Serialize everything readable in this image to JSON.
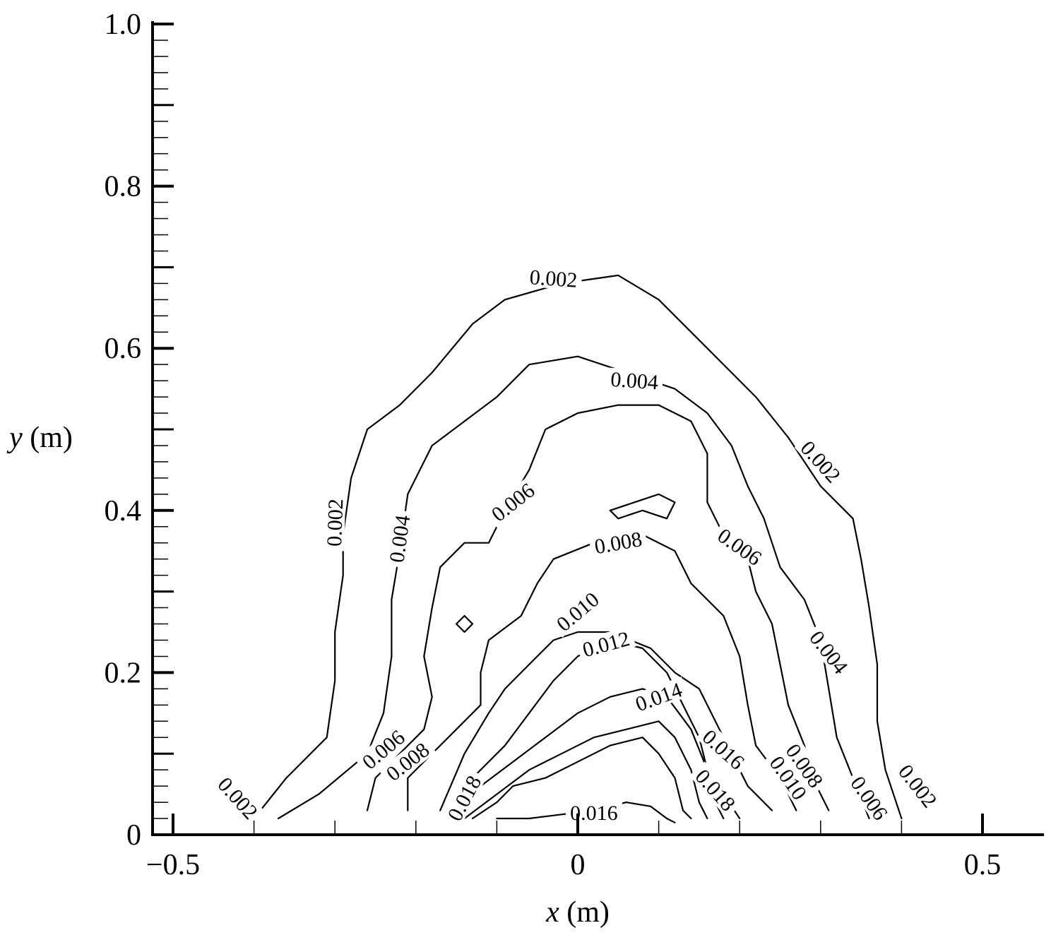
{
  "chart_data": {
    "type": "contour",
    "xlabel_var": "x",
    "xlabel_unit": "(m)",
    "ylabel_var": "y",
    "ylabel_unit": "(m)",
    "xlim": [
      -0.55,
      0.58
    ],
    "ylim": [
      0,
      1.0
    ],
    "x_ticks": [
      {
        "value": -0.5,
        "label": "−0.5"
      },
      {
        "value": 0,
        "label": "0"
      },
      {
        "value": 0.5,
        "label": "0.5"
      }
    ],
    "y_ticks": [
      {
        "value": 0,
        "label": "0"
      },
      {
        "value": 0.2,
        "label": "0.2"
      },
      {
        "value": 0.4,
        "label": "0.4"
      },
      {
        "value": 0.6,
        "label": "0.6"
      },
      {
        "value": 0.8,
        "label": "0.8"
      },
      {
        "value": 1.0,
        "label": "1.0"
      }
    ],
    "contours": [
      {
        "level": "0.002",
        "points": [
          [
            -0.4,
            0.02
          ],
          [
            -0.36,
            0.07
          ],
          [
            -0.31,
            0.12
          ],
          [
            -0.3,
            0.19
          ],
          [
            -0.3,
            0.25
          ],
          [
            -0.29,
            0.32
          ],
          [
            -0.29,
            0.37
          ],
          [
            -0.28,
            0.44
          ],
          [
            -0.26,
            0.5
          ],
          [
            -0.22,
            0.53
          ],
          [
            -0.18,
            0.57
          ],
          [
            -0.13,
            0.63
          ],
          [
            -0.09,
            0.66
          ],
          [
            -0.02,
            0.68
          ],
          [
            0.05,
            0.69
          ],
          [
            0.1,
            0.66
          ],
          [
            0.16,
            0.6
          ],
          [
            0.22,
            0.54
          ],
          [
            0.26,
            0.49
          ],
          [
            0.3,
            0.43
          ],
          [
            0.34,
            0.39
          ],
          [
            0.35,
            0.34
          ],
          [
            0.36,
            0.28
          ],
          [
            0.37,
            0.21
          ],
          [
            0.37,
            0.14
          ],
          [
            0.38,
            0.08
          ],
          [
            0.4,
            0.02
          ]
        ]
      },
      {
        "level": "0.004",
        "points": [
          [
            -0.37,
            0.02
          ],
          [
            -0.32,
            0.05
          ],
          [
            -0.26,
            0.1
          ],
          [
            -0.24,
            0.15
          ],
          [
            -0.23,
            0.22
          ],
          [
            -0.23,
            0.29
          ],
          [
            -0.22,
            0.35
          ],
          [
            -0.21,
            0.42
          ],
          [
            -0.18,
            0.48
          ],
          [
            -0.1,
            0.54
          ],
          [
            -0.06,
            0.58
          ],
          [
            0.0,
            0.59
          ],
          [
            0.06,
            0.57
          ],
          [
            0.12,
            0.55
          ],
          [
            0.16,
            0.52
          ],
          [
            0.19,
            0.48
          ],
          [
            0.21,
            0.43
          ],
          [
            0.23,
            0.39
          ],
          [
            0.25,
            0.33
          ],
          [
            0.28,
            0.29
          ],
          [
            0.3,
            0.24
          ],
          [
            0.31,
            0.18
          ],
          [
            0.32,
            0.12
          ],
          [
            0.34,
            0.07
          ],
          [
            0.36,
            0.02
          ]
        ]
      },
      {
        "level": "0.006",
        "points": [
          [
            -0.26,
            0.03
          ],
          [
            -0.25,
            0.07
          ],
          [
            -0.19,
            0.13
          ],
          [
            -0.18,
            0.17
          ],
          [
            -0.19,
            0.22
          ],
          [
            -0.18,
            0.28
          ],
          [
            -0.17,
            0.33
          ],
          [
            -0.14,
            0.36
          ],
          [
            -0.11,
            0.36
          ],
          [
            -0.09,
            0.4
          ],
          [
            -0.06,
            0.45
          ],
          [
            -0.04,
            0.5
          ],
          [
            0.0,
            0.52
          ],
          [
            0.05,
            0.53
          ],
          [
            0.1,
            0.53
          ],
          [
            0.14,
            0.51
          ],
          [
            0.16,
            0.47
          ],
          [
            0.16,
            0.41
          ],
          [
            0.18,
            0.37
          ],
          [
            0.21,
            0.34
          ],
          [
            0.22,
            0.3
          ],
          [
            0.24,
            0.26
          ],
          [
            0.25,
            0.21
          ],
          [
            0.26,
            0.16
          ],
          [
            0.28,
            0.11
          ],
          [
            0.29,
            0.07
          ],
          [
            0.31,
            0.03
          ]
        ]
      },
      {
        "level": "0.008",
        "points": [
          [
            -0.21,
            0.03
          ],
          [
            -0.21,
            0.07
          ],
          [
            -0.15,
            0.13
          ],
          [
            -0.12,
            0.16
          ],
          [
            -0.12,
            0.2
          ],
          [
            -0.11,
            0.24
          ],
          [
            -0.07,
            0.27
          ],
          [
            -0.05,
            0.31
          ],
          [
            -0.03,
            0.34
          ],
          [
            0.02,
            0.36
          ],
          [
            0.08,
            0.37
          ],
          [
            0.12,
            0.35
          ],
          [
            0.14,
            0.31
          ],
          [
            0.18,
            0.27
          ],
          [
            0.2,
            0.22
          ],
          [
            0.21,
            0.16
          ],
          [
            0.22,
            0.11
          ],
          [
            0.25,
            0.07
          ],
          [
            0.27,
            0.03
          ]
        ]
      },
      {
        "level": "0.010",
        "points": [
          [
            -0.17,
            0.03
          ],
          [
            -0.14,
            0.1
          ],
          [
            -0.11,
            0.15
          ],
          [
            -0.09,
            0.18
          ],
          [
            -0.06,
            0.21
          ],
          [
            -0.03,
            0.24
          ],
          [
            0.0,
            0.25
          ],
          [
            0.04,
            0.25
          ],
          [
            0.09,
            0.23
          ],
          [
            0.12,
            0.2
          ],
          [
            0.15,
            0.18
          ],
          [
            0.17,
            0.14
          ],
          [
            0.19,
            0.1
          ],
          [
            0.21,
            0.06
          ],
          [
            0.24,
            0.03
          ]
        ]
      },
      {
        "level": "0.012",
        "points": [
          [
            -0.16,
            0.02
          ],
          [
            -0.13,
            0.07
          ],
          [
            -0.09,
            0.11
          ],
          [
            -0.06,
            0.15
          ],
          [
            -0.03,
            0.19
          ],
          [
            0.0,
            0.22
          ],
          [
            0.04,
            0.24
          ],
          [
            0.08,
            0.23
          ],
          [
            0.11,
            0.2
          ],
          [
            0.13,
            0.16
          ],
          [
            0.15,
            0.12
          ],
          [
            0.16,
            0.08
          ],
          [
            0.18,
            0.05
          ],
          [
            0.2,
            0.02
          ]
        ]
      },
      {
        "level": "0.014",
        "points": [
          [
            -0.15,
            0.02
          ],
          [
            -0.12,
            0.06
          ],
          [
            -0.08,
            0.09
          ],
          [
            -0.04,
            0.12
          ],
          [
            0.0,
            0.15
          ],
          [
            0.04,
            0.17
          ],
          [
            0.08,
            0.18
          ],
          [
            0.11,
            0.17
          ],
          [
            0.14,
            0.13
          ],
          [
            0.16,
            0.08
          ],
          [
            0.17,
            0.04
          ],
          [
            0.18,
            0.02
          ]
        ]
      },
      {
        "level": "0.016",
        "points": [
          [
            -0.14,
            0.02
          ],
          [
            -0.1,
            0.05
          ],
          [
            -0.06,
            0.08
          ],
          [
            -0.02,
            0.1
          ],
          [
            0.02,
            0.12
          ],
          [
            0.06,
            0.13
          ],
          [
            0.1,
            0.14
          ],
          [
            0.12,
            0.12
          ],
          [
            0.14,
            0.08
          ],
          [
            0.15,
            0.04
          ],
          [
            0.16,
            0.02
          ]
        ]
      },
      {
        "level": "0.018",
        "points": [
          [
            -0.13,
            0.02
          ],
          [
            -0.1,
            0.04
          ],
          [
            -0.08,
            0.06
          ],
          [
            -0.04,
            0.07
          ],
          [
            0.0,
            0.09
          ],
          [
            0.04,
            0.11
          ],
          [
            0.08,
            0.12
          ],
          [
            0.1,
            0.1
          ],
          [
            0.12,
            0.07
          ],
          [
            0.13,
            0.03
          ],
          [
            0.14,
            0.02
          ]
        ]
      },
      {
        "level": "0.016",
        "points": [
          [
            -0.1,
            0.02
          ],
          [
            -0.06,
            0.02
          ],
          [
            -0.02,
            0.025
          ],
          [
            0.02,
            0.03
          ],
          [
            0.06,
            0.04
          ],
          [
            0.09,
            0.035
          ],
          [
            0.11,
            0.02
          ],
          [
            0.12,
            0.015
          ]
        ]
      },
      {
        "level": "",
        "points": [
          [
            0.04,
            0.4
          ],
          [
            0.07,
            0.41
          ],
          [
            0.1,
            0.42
          ],
          [
            0.12,
            0.41
          ],
          [
            0.11,
            0.39
          ],
          [
            0.08,
            0.4
          ],
          [
            0.05,
            0.39
          ],
          [
            0.04,
            0.4
          ]
        ]
      },
      {
        "level": "",
        "points": [
          [
            -0.14,
            0.27
          ],
          [
            -0.13,
            0.26
          ],
          [
            -0.14,
            0.25
          ],
          [
            -0.15,
            0.26
          ],
          [
            -0.14,
            0.27
          ]
        ]
      }
    ],
    "labels": [
      {
        "text": "0.002",
        "x": -0.03,
        "y": 0.686,
        "angle": 4
      },
      {
        "text": "0.004",
        "x": 0.07,
        "y": 0.56,
        "angle": 4
      },
      {
        "text": "0.002",
        "x": 0.3,
        "y": 0.46,
        "angle": 48
      },
      {
        "text": "0.002",
        "x": -0.3,
        "y": 0.385,
        "angle": -88
      },
      {
        "text": "0.004",
        "x": -0.22,
        "y": 0.365,
        "angle": -82
      },
      {
        "text": "0.006",
        "x": -0.08,
        "y": 0.41,
        "angle": -38
      },
      {
        "text": "0.006",
        "x": 0.2,
        "y": 0.355,
        "angle": 35
      },
      {
        "text": "0.008",
        "x": 0.05,
        "y": 0.36,
        "angle": -10
      },
      {
        "text": "0.010",
        "x": 0.0,
        "y": 0.275,
        "angle": -40
      },
      {
        "text": "0.004",
        "x": 0.31,
        "y": 0.225,
        "angle": 52
      },
      {
        "text": "0.012",
        "x": 0.035,
        "y": 0.235,
        "angle": -15
      },
      {
        "text": "0.014",
        "x": 0.1,
        "y": 0.17,
        "angle": -20
      },
      {
        "text": "0.016",
        "x": 0.18,
        "y": 0.105,
        "angle": 42
      },
      {
        "text": "0.006",
        "x": -0.24,
        "y": 0.105,
        "angle": -40
      },
      {
        "text": "0.008",
        "x": -0.21,
        "y": 0.09,
        "angle": -38
      },
      {
        "text": "0.008",
        "x": 0.28,
        "y": 0.085,
        "angle": 55
      },
      {
        "text": "0.010",
        "x": 0.26,
        "y": 0.07,
        "angle": 55
      },
      {
        "text": "0.006",
        "x": 0.36,
        "y": 0.045,
        "angle": 55
      },
      {
        "text": "0.002",
        "x": 0.42,
        "y": 0.06,
        "angle": 52
      },
      {
        "text": "0.018",
        "x": -0.14,
        "y": 0.045,
        "angle": -62
      },
      {
        "text": "0.018",
        "x": 0.17,
        "y": 0.055,
        "angle": 48
      },
      {
        "text": "0.016",
        "x": 0.02,
        "y": 0.027,
        "angle": 0
      },
      {
        "text": "0.002",
        "x": -0.42,
        "y": 0.045,
        "angle": 48
      }
    ]
  }
}
